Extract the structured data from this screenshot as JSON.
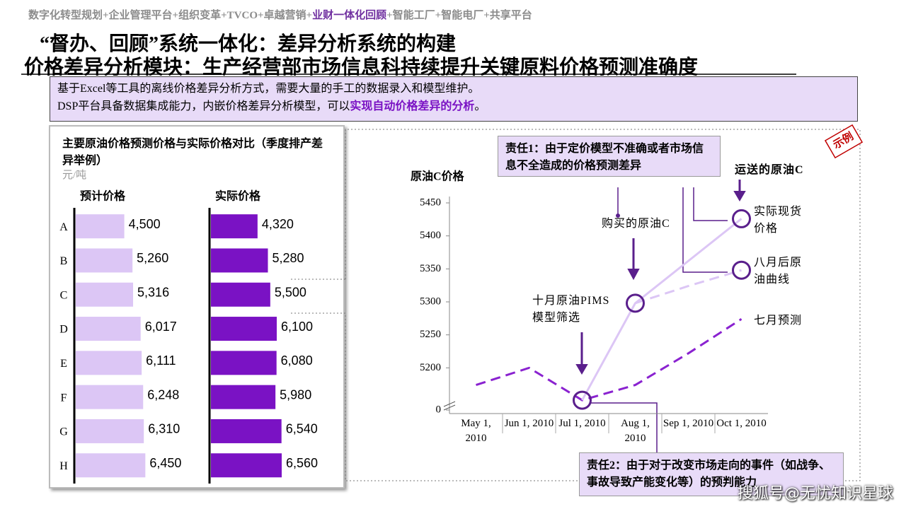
{
  "header": {
    "breadcrumb_before": "数字化转型规划+企业管理平台+组织变革+TVCO+卓越营销+",
    "breadcrumb_highlight": "业财一体化回顾",
    "breadcrumb_after": "+智能工厂+智能电厂+共享平台"
  },
  "title_line1": "“督办、回顾”系统一体化：差异分析系统的构建",
  "title_line2": "价格差异分析模块：生产经营部市场信息科持续提升关键原料价格预测准确度",
  "summary": {
    "line1": "基于Excel等工具的离线价格差异分析方式，需要大量的手工的数据录入和模型维护。",
    "line2_start": "DSP平台具备数据集成能力，内嵌价格差异分析模型，可以",
    "line2_highlight": "实现自动价格差异的分析",
    "line2_end": "。"
  },
  "stamp": "示例",
  "watermark": "搜狐号@无忧知识星球",
  "chart_data": [
    {
      "type": "paired-bar",
      "title": "主要原油价格预测价格与实际价格对比（季度排产差异举例）",
      "unit": "元/吨",
      "categories": [
        "A",
        "B",
        "C",
        "D",
        "E",
        "F",
        "G",
        "H"
      ],
      "series": [
        {
          "name": "预计价格",
          "color": "#dcc6f5",
          "values": [
            4500,
            5260,
            5316,
            6017,
            6111,
            6248,
            6310,
            6450
          ],
          "value_labels": [
            "4,500",
            "5,260",
            "5,316",
            "6,017",
            "6,111",
            "6,248",
            "6,310",
            "6,450"
          ]
        },
        {
          "name": "实际价格",
          "color": "#7a12c4",
          "values": [
            4320,
            5280,
            5500,
            6100,
            6080,
            5980,
            6540,
            6560
          ],
          "value_labels": [
            "4,320",
            "5,280",
            "5,500",
            "6,100",
            "6,080",
            "5,980",
            "6,540",
            "6,560"
          ]
        }
      ]
    },
    {
      "type": "line",
      "y_label": "原油C价格",
      "categories": [
        "May 1, 2010",
        "Jun 1, 2010",
        "Jul 1, 2010",
        "Aug 1, 2010",
        "Sep 1, 2010",
        "Oct 1, 2010"
      ],
      "ylim": [
        5150,
        5450
      ],
      "yticks": [
        0,
        5200,
        5250,
        5300,
        5350,
        5400,
        5450
      ],
      "axis_break": true,
      "series": [
        {
          "name": "七月预测",
          "color": "#8a22d0",
          "dashed": true,
          "values": [
            5174,
            5200,
            5151,
            5174,
            5222,
            5274
          ]
        },
        {
          "name": "实际现货价格",
          "color": "#dcc6f5",
          "dashed": false,
          "values": [
            null,
            null,
            5151,
            5298,
            5362,
            5426
          ]
        },
        {
          "name": "八月后原油曲线",
          "color": "#dcc6f5",
          "dashed": true,
          "values": [
            null,
            null,
            null,
            5298,
            5324,
            5348
          ]
        }
      ],
      "annotations": {
        "pims": "十月原油PIMS模型筛选",
        "bought": "购买的原油C",
        "shipped": "运送的原油C",
        "resp1": "责任1：由于定价模型不准确或者市场信息不全造成的价格预测差异",
        "resp2": "责任2：由于对于改变市场走向的事件（如战争、事故导致产能变化等）的预判能力"
      }
    }
  ]
}
